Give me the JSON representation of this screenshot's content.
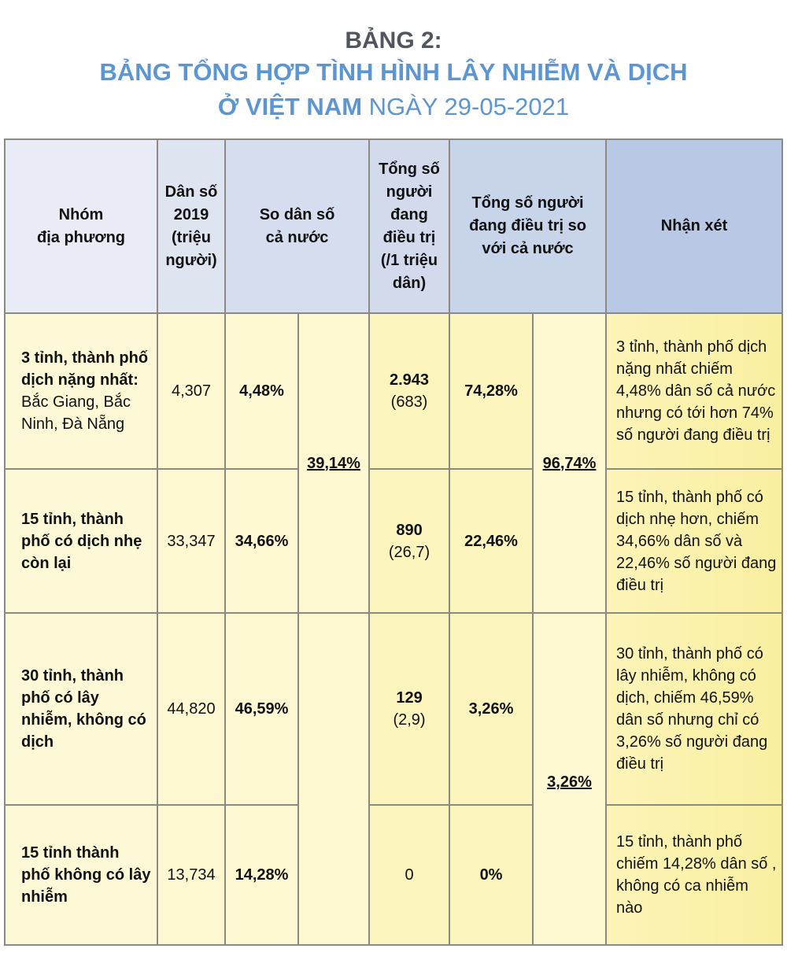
{
  "title": {
    "line1": "BẢNG 2:",
    "line2": "BẢNG TỔNG HỢP TÌNH HÌNH LÂY NHIỄM VÀ DỊCH",
    "line3_bold": "Ở VIỆT NAM",
    "line3_light": " NGÀY 29-05-2021"
  },
  "headers": [
    "Nhóm\nđịa phương",
    "Dân số 2019 (triệu người)",
    "So dân số\ncả nước",
    "Tổng số người đang điều trị (/1 triệu dân)",
    "Tổng số người đang điều trị so với cả nước",
    "Nhận xét"
  ],
  "merged": {
    "pop_group1": "39,14%",
    "treat_group1": "96,74%",
    "pop_group2": "",
    "treat_group2": "3,26%"
  },
  "rows": [
    {
      "group_bold": "3 tỉnh, thành phố dịch nặng nhất:",
      "group_detail": "Bắc Giang, Bắc Ninh, Đà Nẵng",
      "population": "4,307",
      "pop_share": "4,48%",
      "treating": "2.943",
      "per_million": "(683)",
      "treat_share": "74,28%",
      "note": "3 tỉnh, thành phố dịch nặng nhất chiếm 4,48% dân số cả nước nhưng có tới hơn 74% số người đang điều trị"
    },
    {
      "group_bold": "15 tỉnh, thành phố có dịch nhẹ còn lại",
      "group_detail": "",
      "population": "33,347",
      "pop_share": "34,66%",
      "treating": "890",
      "per_million": "(26,7)",
      "treat_share": "22,46%",
      "note": "15 tỉnh, thành phố có dịch nhẹ hơn, chiếm 34,66% dân số và 22,46% số người đang điều trị"
    },
    {
      "group_bold": "30 tỉnh, thành phố có lây nhiễm, không có dịch",
      "group_detail": "",
      "population": "44,820",
      "pop_share": "46,59%",
      "treating": "129",
      "per_million": "(2,9)",
      "treat_share": "3,26%",
      "note": "30 tỉnh, thành phố có lây nhiễm, không có dịch, chiếm 46,59% dân số nhưng chỉ có 3,26% số người đang điều trị"
    },
    {
      "group_bold": "15 tỉnh thành phố không có lây nhiễm",
      "group_detail": "",
      "population": "13,734",
      "pop_share": "14,28%",
      "treating": "0",
      "per_million": "",
      "treat_share": "0%",
      "note": "15 tỉnh, thành phố chiếm 14,28% dân số , không có ca nhiễm nào"
    }
  ]
}
